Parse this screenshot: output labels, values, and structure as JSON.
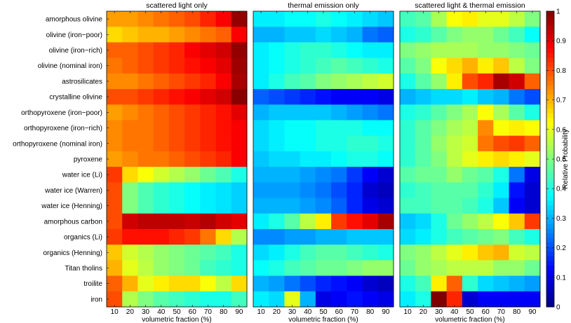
{
  "chart_data": {
    "type": "heatmap",
    "panels": [
      {
        "title": "scattered light only",
        "xlabel": "volumetric fraction (%)",
        "values": [
          [
            0.72,
            0.72,
            0.74,
            0.76,
            0.78,
            0.8,
            0.84,
            0.88,
            0.98
          ],
          [
            0.66,
            0.68,
            0.7,
            0.7,
            0.72,
            0.74,
            0.76,
            0.78,
            0.88
          ],
          [
            0.78,
            0.78,
            0.8,
            0.82,
            0.84,
            0.88,
            0.9,
            0.92,
            0.98
          ],
          [
            0.76,
            0.78,
            0.8,
            0.82,
            0.84,
            0.86,
            0.88,
            0.9,
            0.97
          ],
          [
            0.74,
            0.74,
            0.76,
            0.78,
            0.8,
            0.82,
            0.84,
            0.88,
            0.96
          ],
          [
            0.8,
            0.8,
            0.82,
            0.84,
            0.86,
            0.88,
            0.9,
            0.92,
            0.99
          ],
          [
            0.72,
            0.74,
            0.76,
            0.78,
            0.8,
            0.82,
            0.84,
            0.86,
            0.9
          ],
          [
            0.74,
            0.76,
            0.76,
            0.78,
            0.8,
            0.82,
            0.84,
            0.86,
            0.88
          ],
          [
            0.74,
            0.76,
            0.76,
            0.78,
            0.8,
            0.82,
            0.84,
            0.86,
            0.88
          ],
          [
            0.72,
            0.74,
            0.76,
            0.76,
            0.78,
            0.8,
            0.82,
            0.84,
            0.88
          ],
          [
            0.82,
            0.66,
            0.62,
            0.58,
            0.55,
            0.52,
            0.48,
            0.45,
            0.4
          ],
          [
            0.8,
            0.5,
            0.45,
            0.42,
            0.4,
            0.38,
            0.36,
            0.35,
            0.33
          ],
          [
            0.8,
            0.5,
            0.45,
            0.42,
            0.4,
            0.38,
            0.36,
            0.35,
            0.33
          ],
          [
            0.8,
            0.92,
            0.94,
            0.94,
            0.94,
            0.93,
            0.95,
            0.92,
            0.9
          ],
          [
            0.82,
            0.86,
            0.86,
            0.86,
            0.84,
            0.82,
            0.76,
            0.66,
            0.55
          ],
          [
            0.68,
            0.58,
            0.55,
            0.52,
            0.5,
            0.48,
            0.46,
            0.44,
            0.4
          ],
          [
            0.7,
            0.6,
            0.56,
            0.52,
            0.5,
            0.48,
            0.44,
            0.42,
            0.4
          ],
          [
            0.78,
            0.7,
            0.6,
            0.64,
            0.66,
            0.66,
            0.62,
            0.56,
            0.66
          ],
          [
            0.8,
            0.55,
            0.5,
            0.46,
            0.44,
            0.42,
            0.4,
            0.4,
            0.44
          ]
        ]
      },
      {
        "title": "thermal emission only",
        "xlabel": "volumetric fraction (%)",
        "values": [
          [
            0.36,
            0.36,
            0.38,
            0.38,
            0.4,
            0.38,
            0.36,
            0.34,
            0.32
          ],
          [
            0.3,
            0.3,
            0.32,
            0.32,
            0.34,
            0.32,
            0.3,
            0.24,
            0.22
          ],
          [
            0.36,
            0.38,
            0.4,
            0.42,
            0.42,
            0.4,
            0.38,
            0.36,
            0.36
          ],
          [
            0.36,
            0.38,
            0.4,
            0.42,
            0.44,
            0.46,
            0.44,
            0.42,
            0.4
          ],
          [
            0.36,
            0.4,
            0.44,
            0.46,
            0.5,
            0.52,
            0.54,
            0.56,
            0.58
          ],
          [
            0.22,
            0.2,
            0.18,
            0.16,
            0.14,
            0.12,
            0.12,
            0.12,
            0.1
          ],
          [
            0.3,
            0.32,
            0.32,
            0.32,
            0.32,
            0.3,
            0.28,
            0.26,
            0.24
          ],
          [
            0.34,
            0.36,
            0.38,
            0.38,
            0.4,
            0.4,
            0.4,
            0.38,
            0.38
          ],
          [
            0.34,
            0.36,
            0.38,
            0.38,
            0.4,
            0.4,
            0.42,
            0.42,
            0.4
          ],
          [
            0.32,
            0.34,
            0.34,
            0.36,
            0.36,
            0.38,
            0.4,
            0.4,
            0.38
          ],
          [
            0.3,
            0.3,
            0.3,
            0.28,
            0.26,
            0.24,
            0.18,
            0.12,
            0.08
          ],
          [
            0.28,
            0.28,
            0.28,
            0.26,
            0.24,
            0.2,
            0.16,
            0.08,
            0.06
          ],
          [
            0.3,
            0.3,
            0.3,
            0.28,
            0.26,
            0.22,
            0.16,
            0.1,
            0.08
          ],
          [
            0.36,
            0.4,
            0.46,
            0.56,
            0.64,
            0.82,
            0.86,
            0.9,
            0.96
          ],
          [
            0.26,
            0.26,
            0.28,
            0.28,
            0.3,
            0.3,
            0.32,
            0.32,
            0.32
          ],
          [
            0.34,
            0.36,
            0.4,
            0.44,
            0.46,
            0.46,
            0.44,
            0.42,
            0.4
          ],
          [
            0.38,
            0.4,
            0.44,
            0.46,
            0.48,
            0.48,
            0.5,
            0.52,
            0.52
          ],
          [
            0.3,
            0.28,
            0.24,
            0.2,
            0.16,
            0.14,
            0.12,
            0.08,
            0.06
          ],
          [
            0.36,
            0.34,
            0.6,
            0.3,
            0.1,
            0.12,
            0.14,
            0.12,
            0.1
          ]
        ]
      },
      {
        "title": "scattered light & thermal emission",
        "xlabel": "volumetric fraction (%)",
        "values": [
          [
            0.44,
            0.46,
            0.54,
            0.62,
            0.64,
            0.6,
            0.6,
            0.56,
            0.5
          ],
          [
            0.4,
            0.42,
            0.46,
            0.5,
            0.52,
            0.52,
            0.48,
            0.44,
            0.38
          ],
          [
            0.5,
            0.52,
            0.54,
            0.54,
            0.54,
            0.52,
            0.52,
            0.5,
            0.48
          ],
          [
            0.46,
            0.5,
            0.62,
            0.66,
            0.7,
            0.64,
            0.68,
            0.56,
            0.5
          ],
          [
            0.4,
            0.46,
            0.52,
            0.64,
            0.8,
            0.84,
            0.96,
            0.92,
            0.78
          ],
          [
            0.3,
            0.32,
            0.34,
            0.34,
            0.36,
            0.32,
            0.3,
            0.24,
            0.2
          ],
          [
            0.4,
            0.42,
            0.46,
            0.5,
            0.54,
            0.62,
            0.54,
            0.46,
            0.4
          ],
          [
            0.42,
            0.46,
            0.5,
            0.54,
            0.56,
            0.74,
            0.62,
            0.64,
            0.62
          ],
          [
            0.42,
            0.46,
            0.52,
            0.56,
            0.58,
            0.76,
            0.8,
            0.82,
            0.78
          ],
          [
            0.42,
            0.46,
            0.5,
            0.56,
            0.6,
            0.64,
            0.66,
            0.64,
            0.6
          ],
          [
            0.46,
            0.48,
            0.48,
            0.52,
            0.48,
            0.46,
            0.4,
            0.24,
            0.1
          ],
          [
            0.42,
            0.44,
            0.46,
            0.46,
            0.46,
            0.42,
            0.36,
            0.14,
            0.08
          ],
          [
            0.44,
            0.44,
            0.46,
            0.46,
            0.44,
            0.4,
            0.32,
            0.12,
            0.08
          ],
          [
            0.32,
            0.34,
            0.4,
            0.48,
            0.52,
            0.56,
            0.62,
            0.68,
            0.82
          ],
          [
            0.34,
            0.36,
            0.4,
            0.44,
            0.46,
            0.48,
            0.5,
            0.44,
            0.4
          ],
          [
            0.5,
            0.52,
            0.56,
            0.6,
            0.64,
            0.68,
            0.7,
            0.58,
            0.56
          ],
          [
            0.48,
            0.52,
            0.54,
            0.56,
            0.56,
            0.56,
            0.52,
            0.52,
            0.48
          ],
          [
            0.4,
            0.44,
            0.64,
            0.78,
            0.42,
            0.34,
            0.32,
            0.3,
            0.28
          ],
          [
            0.36,
            0.4,
            1.0,
            0.84,
            0.08,
            0.12,
            0.12,
            0.12,
            0.12
          ]
        ]
      }
    ],
    "y_categories": [
      "amorphous olivine",
      "olivine (iron−poor)",
      "olivine (iron−rich)",
      "olivine (nominal iron)",
      "astrosilicates",
      "crystalline olivine",
      "orthopyroxene (iron−poor)",
      "orthopyroxene (iron−rich)",
      "orthopyroxene (nominal iron)",
      "pyroxene",
      "water ice (Li)",
      "water ice (Warren)",
      "water ice (Henning)",
      "amorphous carbon",
      "organics (Li)",
      "organics (Henning)",
      "Titan tholins",
      "troilite",
      "iron"
    ],
    "x_categories": [
      "10",
      "20",
      "30",
      "40",
      "50",
      "60",
      "70",
      "80",
      "90"
    ],
    "colorbar": {
      "label": "Relative Probability",
      "min": 0,
      "max": 1,
      "ticks": [
        "0",
        "0.1",
        "0.2",
        "0.3",
        "0.4",
        "0.5",
        "0.6",
        "0.7",
        "0.8",
        "0.9",
        "1"
      ],
      "colormap": "jet"
    }
  }
}
